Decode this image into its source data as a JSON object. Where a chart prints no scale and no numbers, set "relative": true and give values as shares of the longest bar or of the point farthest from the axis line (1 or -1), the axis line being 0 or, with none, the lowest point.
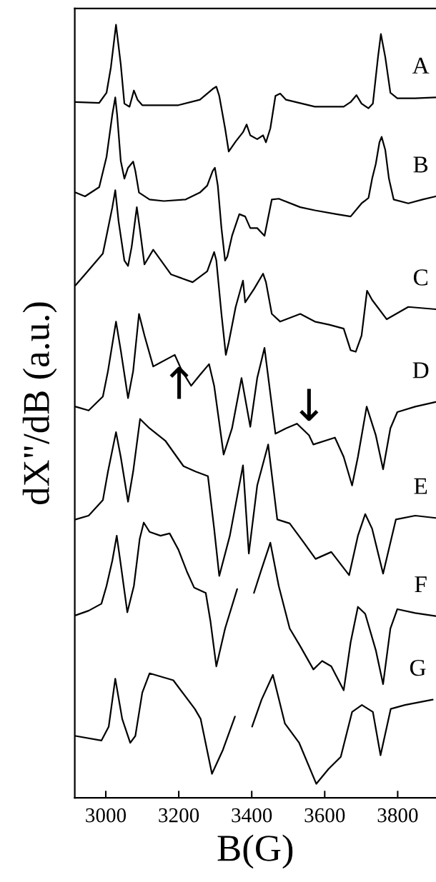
{
  "chart_data": {
    "type": "line",
    "relative": true,
    "xlabel": "B(G)",
    "ylabel": "dX\"/dB (a.u.)",
    "xlim": [
      2915,
      3905
    ],
    "xticks": [
      3000,
      3200,
      3400,
      3600,
      3800
    ],
    "tick_labels": "x",
    "annotations": [
      {
        "text": "↑",
        "x": 3201,
        "y": 0.559
      },
      {
        "text": "↓",
        "x": 3557,
        "y": 0.476
      }
    ],
    "series": [
      {
        "name": "A",
        "color": "#000000",
        "x": [
          2917,
          2982,
          3002,
          3014,
          3028,
          3041,
          3051,
          3065,
          3077,
          3087,
          3100,
          3199,
          3258,
          3293,
          3303,
          3311,
          3327,
          3337,
          3356,
          3376,
          3386,
          3396,
          3415,
          3431,
          3439,
          3451,
          3465,
          3478,
          3494,
          3573,
          3652,
          3671,
          3687,
          3701,
          3720,
          3732,
          3746,
          3754,
          3766,
          3780,
          3799,
          3848,
          3904
        ],
        "values": [
          0.9,
          0.899,
          0.912,
          0.945,
          1.0,
          0.949,
          0.898,
          0.894,
          0.915,
          0.903,
          0.896,
          0.896,
          0.903,
          0.917,
          0.92,
          0.908,
          0.866,
          0.836,
          0.849,
          0.861,
          0.871,
          0.857,
          0.852,
          0.857,
          0.848,
          0.866,
          0.908,
          0.911,
          0.903,
          0.894,
          0.894,
          0.9,
          0.909,
          0.898,
          0.892,
          0.898,
          0.958,
          0.988,
          0.958,
          0.912,
          0.905,
          0.905,
          0.906
        ]
      },
      {
        "name": "B",
        "color": "#000000",
        "x": [
          2917,
          2943,
          2982,
          3002,
          3018,
          3026,
          3031,
          3041,
          3051,
          3061,
          3075,
          3081,
          3091,
          3120,
          3159,
          3219,
          3258,
          3278,
          3293,
          3299,
          3307,
          3317,
          3327,
          3333,
          3346,
          3366,
          3382,
          3396,
          3415,
          3435,
          3441,
          3455,
          3474,
          3533,
          3573,
          3632,
          3671,
          3701,
          3720,
          3730,
          3740,
          3750,
          3756,
          3766,
          3776,
          3789,
          3829,
          3868,
          3904
        ],
        "values": [
          0.783,
          0.778,
          0.79,
          0.829,
          0.884,
          0.906,
          0.884,
          0.824,
          0.801,
          0.815,
          0.823,
          0.811,
          0.783,
          0.774,
          0.772,
          0.774,
          0.783,
          0.792,
          0.811,
          0.815,
          0.792,
          0.737,
          0.695,
          0.7,
          0.727,
          0.755,
          0.752,
          0.737,
          0.737,
          0.727,
          0.741,
          0.774,
          0.775,
          0.764,
          0.76,
          0.755,
          0.752,
          0.769,
          0.776,
          0.801,
          0.82,
          0.848,
          0.855,
          0.838,
          0.801,
          0.774,
          0.769,
          0.774,
          0.778
        ]
      },
      {
        "name": "C",
        "color": "#000000",
        "x": [
          2917,
          2943,
          2992,
          3002,
          3018,
          3026,
          3035,
          3051,
          3061,
          3071,
          3085,
          3093,
          3106,
          3130,
          3179,
          3238,
          3278,
          3297,
          3303,
          3317,
          3329,
          3337,
          3356,
          3376,
          3382,
          3406,
          3431,
          3439,
          3455,
          3478,
          3533,
          3573,
          3612,
          3652,
          3671,
          3685,
          3701,
          3716,
          3730,
          3770,
          3829,
          3904
        ],
        "values": [
          0.663,
          0.677,
          0.704,
          0.727,
          0.764,
          0.786,
          0.746,
          0.695,
          0.688,
          0.713,
          0.764,
          0.737,
          0.69,
          0.709,
          0.677,
          0.667,
          0.681,
          0.706,
          0.695,
          0.626,
          0.573,
          0.589,
          0.635,
          0.669,
          0.641,
          0.658,
          0.678,
          0.667,
          0.626,
          0.616,
          0.626,
          0.616,
          0.612,
          0.607,
          0.579,
          0.577,
          0.598,
          0.656,
          0.644,
          0.619,
          0.635,
          0.632
        ]
      },
      {
        "name": "D",
        "color": "#000000",
        "x": [
          2917,
          2953,
          2992,
          3006,
          3028,
          3041,
          3061,
          3075,
          3091,
          3106,
          3130,
          3189,
          3209,
          3234,
          3258,
          3283,
          3297,
          3323,
          3346,
          3372,
          3396,
          3415,
          3435,
          3465,
          3494,
          3524,
          3557,
          3569,
          3628,
          3652,
          3675,
          3691,
          3715,
          3740,
          3760,
          3780,
          3799,
          3848,
          3904
        ],
        "values": [
          0.506,
          0.501,
          0.519,
          0.552,
          0.616,
          0.579,
          0.517,
          0.552,
          0.626,
          0.598,
          0.558,
          0.573,
          0.552,
          0.533,
          0.547,
          0.561,
          0.533,
          0.444,
          0.478,
          0.543,
          0.48,
          0.543,
          0.582,
          0.471,
          0.478,
          0.484,
          0.469,
          0.457,
          0.466,
          0.441,
          0.404,
          0.441,
          0.506,
          0.469,
          0.425,
          0.478,
          0.499,
          0.506,
          0.512
        ]
      },
      {
        "name": "E",
        "color": "#000000",
        "x": [
          2917,
          2953,
          2992,
          3006,
          3028,
          3041,
          3061,
          3075,
          3094,
          3120,
          3163,
          3213,
          3246,
          3280,
          3297,
          3311,
          3340,
          3376,
          3392,
          3415,
          3445,
          3470,
          3504,
          3543,
          3575,
          3618,
          3667,
          3691,
          3711,
          3730,
          3760,
          3795,
          3848,
          3904
        ],
        "values": [
          0.36,
          0.365,
          0.385,
          0.422,
          0.473,
          0.441,
          0.383,
          0.422,
          0.49,
          0.478,
          0.462,
          0.429,
          0.422,
          0.416,
          0.348,
          0.287,
          0.339,
          0.43,
          0.316,
          0.404,
          0.457,
          0.36,
          0.355,
          0.33,
          0.309,
          0.318,
          0.288,
          0.339,
          0.367,
          0.348,
          0.29,
          0.36,
          0.365,
          0.362
        ]
      },
      {
        "name": "F",
        "color": "#000000",
        "x": [
          2917,
          2953,
          2988,
          3002,
          3018,
          3030,
          3041,
          3059,
          3077,
          3093,
          3104,
          3120,
          3150,
          3175,
          3199,
          3222,
          3242,
          3274,
          3287,
          3303,
          3327,
          3360,
          3380,
          3406,
          3425,
          3451,
          3474,
          3504,
          3533,
          3569,
          3593,
          3618,
          3652,
          3671,
          3691,
          3711,
          3740,
          3760,
          3780,
          3799,
          3848,
          3904
        ],
        "values": [
          0.236,
          0.242,
          0.251,
          0.274,
          0.307,
          0.339,
          0.302,
          0.24,
          0.274,
          0.335,
          0.356,
          0.344,
          0.339,
          0.342,
          0.321,
          0.293,
          0.272,
          0.265,
          0.228,
          0.17,
          0.219,
          0.27,
          null,
          0.265,
          0.293,
          0.33,
          0.274,
          0.219,
          0.196,
          0.166,
          0.177,
          0.17,
          0.139,
          0.201,
          0.247,
          0.238,
          0.191,
          0.147,
          0.219,
          0.244,
          0.239,
          0.235
        ]
      },
      {
        "name": "G",
        "color": "#000000",
        "x": [
          2917,
          2988,
          3008,
          3026,
          3045,
          3067,
          3081,
          3100,
          3120,
          3185,
          3244,
          3260,
          3291,
          3321,
          3354,
          3380,
          3401,
          3427,
          3458,
          3491,
          3530,
          3577,
          3610,
          3644,
          3675,
          3702,
          3732,
          3753,
          3781,
          3820,
          3896
        ],
        "values": [
          0.08,
          0.074,
          0.092,
          0.154,
          0.102,
          0.071,
          0.08,
          0.136,
          0.161,
          0.152,
          0.115,
          0.102,
          0.031,
          0.062,
          0.105,
          null,
          0.092,
          0.127,
          0.159,
          0.096,
          0.071,
          0.018,
          0.037,
          0.053,
          0.111,
          0.12,
          0.111,
          0.055,
          0.115,
          0.12,
          0.127
        ]
      }
    ]
  }
}
